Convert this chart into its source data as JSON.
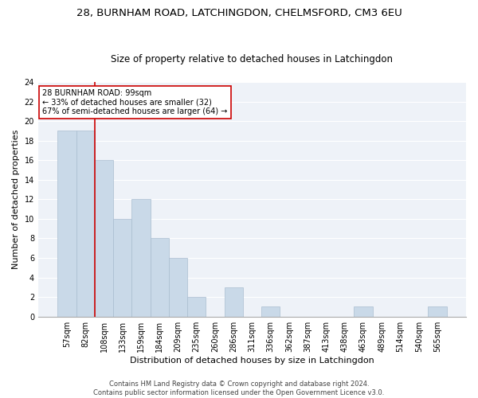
{
  "title1": "28, BURNHAM ROAD, LATCHINGDON, CHELMSFORD, CM3 6EU",
  "title2": "Size of property relative to detached houses in Latchingdon",
  "xlabel": "Distribution of detached houses by size in Latchingdon",
  "ylabel": "Number of detached properties",
  "footnote1": "Contains HM Land Registry data © Crown copyright and database right 2024.",
  "footnote2": "Contains public sector information licensed under the Open Government Licence v3.0.",
  "categories": [
    "57sqm",
    "82sqm",
    "108sqm",
    "133sqm",
    "159sqm",
    "184sqm",
    "209sqm",
    "235sqm",
    "260sqm",
    "286sqm",
    "311sqm",
    "336sqm",
    "362sqm",
    "387sqm",
    "413sqm",
    "438sqm",
    "463sqm",
    "489sqm",
    "514sqm",
    "540sqm",
    "565sqm"
  ],
  "values": [
    19,
    19,
    16,
    10,
    12,
    8,
    6,
    2,
    0,
    3,
    0,
    1,
    0,
    0,
    0,
    0,
    1,
    0,
    0,
    0,
    1
  ],
  "bar_color": "#c9d9e8",
  "bar_edge_color": "#aabdd0",
  "vline_color": "#cc0000",
  "annotation_title": "28 BURNHAM ROAD: 99sqm",
  "annotation_line1": "← 33% of detached houses are smaller (32)",
  "annotation_line2": "67% of semi-detached houses are larger (64) →",
  "annotation_box_facecolor": "#ffffff",
  "annotation_box_edgecolor": "#cc0000",
  "ylim": [
    0,
    24
  ],
  "yticks": [
    0,
    2,
    4,
    6,
    8,
    10,
    12,
    14,
    16,
    18,
    20,
    22,
    24
  ],
  "background_color": "#eef2f8",
  "title1_fontsize": 9.5,
  "title2_fontsize": 8.5,
  "xlabel_fontsize": 8,
  "ylabel_fontsize": 8,
  "tick_fontsize": 7,
  "annotation_fontsize": 7,
  "footnote_fontsize": 6
}
